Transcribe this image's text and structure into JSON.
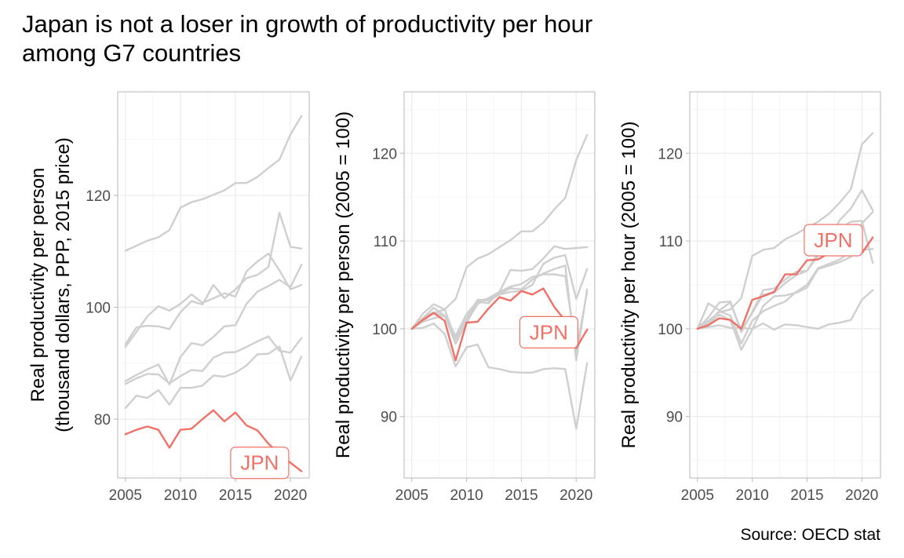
{
  "title_lines": [
    "Japan is not a loser in growth of productivity per hour",
    "among G7 countries"
  ],
  "caption": "Source: OECD stat",
  "colors": {
    "highlight": "#f07167",
    "others": "#cfcfcf"
  },
  "chart_data": [
    {
      "type": "line",
      "ylabel_lines": [
        "Real productivity per person",
        "(thousand dollars, PPP, 2015 price)"
      ],
      "xlim": [
        2004.3,
        2021.7
      ],
      "ylim": [
        69.5,
        138.5
      ],
      "xticks": [
        2005,
        2010,
        2015,
        2020
      ],
      "yticks": [
        80,
        100,
        120
      ],
      "x": [
        2005,
        2006,
        2007,
        2008,
        2009,
        2010,
        2011,
        2012,
        2013,
        2014,
        2015,
        2016,
        2017,
        2018,
        2019,
        2020,
        2021
      ],
      "highlight": {
        "label": "JPN",
        "label_at": [
          2017.2,
          72.2
        ],
        "values": [
          77.3,
          78.1,
          78.7,
          78.1,
          74.9,
          78.1,
          78.3,
          80.0,
          81.6,
          79.6,
          81.2,
          78.9,
          78.0,
          75.6,
          73.9,
          72.2,
          70.7
        ]
      },
      "series": [
        {
          "values": [
            110.1,
            111.0,
            111.9,
            112.5,
            113.8,
            117.8,
            118.8,
            119.3,
            120.1,
            120.9,
            122.2,
            122.2,
            123.3,
            124.9,
            126.4,
            130.9,
            134.2
          ]
        },
        {
          "values": [
            92.9,
            95.6,
            98.4,
            100.2,
            99.4,
            100.6,
            102.3,
            100.8,
            101.6,
            102.5,
            101.9,
            106.4,
            108.2,
            109.6,
            106.6,
            103.2,
            104.0
          ]
        },
        {
          "values": [
            93.4,
            96.4,
            96.7,
            96.6,
            96.1,
            99.1,
            101.1,
            100.5,
            104.0,
            101.6,
            103.2,
            105.2,
            105.8,
            107.2,
            116.9,
            110.8,
            110.5
          ]
        },
        {
          "values": [
            86.8,
            87.9,
            88.9,
            89.8,
            86.2,
            91.1,
            93.6,
            93.2,
            94.7,
            96.6,
            96.8,
            100.6,
            102.8,
            103.8,
            104.9,
            103.6,
            107.6
          ]
        },
        {
          "values": [
            86.3,
            87.3,
            88.1,
            88.0,
            86.4,
            87.7,
            88.8,
            88.6,
            91.0,
            91.9,
            92.0,
            92.9,
            93.9,
            94.8,
            92.2,
            91.9,
            94.5
          ]
        },
        {
          "values": [
            82.0,
            84.2,
            83.8,
            85.2,
            82.6,
            85.6,
            85.6,
            86.0,
            87.8,
            87.6,
            88.3,
            89.6,
            91.6,
            91.7,
            93.0,
            86.9,
            91.2
          ]
        }
      ]
    },
    {
      "type": "line",
      "ylabel_lines": [
        "Real productivity per person (2005 = 100)"
      ],
      "xlim": [
        2004.3,
        2021.7
      ],
      "ylim": [
        83.0,
        127.0
      ],
      "xticks": [
        2005,
        2010,
        2015,
        2020
      ],
      "yticks": [
        90,
        100,
        110,
        120
      ],
      "x": [
        2005,
        2006,
        2007,
        2008,
        2009,
        2010,
        2011,
        2012,
        2013,
        2014,
        2015,
        2016,
        2017,
        2018,
        2019,
        2020,
        2021
      ],
      "highlight": {
        "label": "JPN",
        "label_at": [
          2017.5,
          99.6
        ],
        "values": [
          100.0,
          101.0,
          101.8,
          100.9,
          96.4,
          100.7,
          100.8,
          102.3,
          103.6,
          103.2,
          104.3,
          103.9,
          104.6,
          102.5,
          100.9,
          97.8,
          99.9
        ]
      },
      "series": [
        {
          "values": [
            100.0,
            100.9,
            101.8,
            102.2,
            103.4,
            107.0,
            108.0,
            108.5,
            109.3,
            110.1,
            111.1,
            111.1,
            112.1,
            113.6,
            114.9,
            119.2,
            122.1
          ]
        },
        {
          "values": [
            100.0,
            101.7,
            102.8,
            102.2,
            98.8,
            101.2,
            103.3,
            103.2,
            103.9,
            104.2,
            104.3,
            105.0,
            107.4,
            108.1,
            108.4,
            103.4,
            106.8
          ]
        },
        {
          "values": [
            100.0,
            101.2,
            102.4,
            101.5,
            99.2,
            101.7,
            103.1,
            102.9,
            104.2,
            106.7,
            106.6,
            106.8,
            108.0,
            109.4,
            109.1,
            109.2,
            109.3
          ]
        },
        {
          "values": [
            100.0,
            100.8,
            101.2,
            101.5,
            98.3,
            100.8,
            102.8,
            103.5,
            104.2,
            104.8,
            105.1,
            105.9,
            106.2,
            106.2,
            106.0,
            97.5,
            104.2
          ]
        },
        {
          "values": [
            100.0,
            101.2,
            101.9,
            101.4,
            99.1,
            100.6,
            103.2,
            103.4,
            104.0,
            104.6,
            104.5,
            105.6,
            106.3,
            106.8,
            107.2,
            96.4,
            104.5
          ]
        },
        {
          "values": [
            100.0,
            100.1,
            100.6,
            99.4,
            95.7,
            97.9,
            98.2,
            95.6,
            95.4,
            95.1,
            95.0,
            95.0,
            95.4,
            95.5,
            95.4,
            88.6,
            96.1
          ]
        }
      ]
    },
    {
      "type": "line",
      "ylabel_lines": [
        "Real productivity per hour (2005 = 100)"
      ],
      "xlim": [
        2004.3,
        2021.7
      ],
      "ylim": [
        83.0,
        127.0
      ],
      "xticks": [
        2005,
        2010,
        2015,
        2020
      ],
      "yticks": [
        90,
        100,
        110,
        120
      ],
      "x": [
        2005,
        2006,
        2007,
        2008,
        2009,
        2010,
        2011,
        2012,
        2013,
        2014,
        2015,
        2016,
        2017,
        2018,
        2019,
        2020,
        2021
      ],
      "highlight": {
        "label": "JPN",
        "label_at": [
          2017.4,
          110.1
        ],
        "values": [
          100.0,
          100.4,
          101.2,
          101.0,
          100.0,
          103.3,
          103.7,
          104.2,
          106.2,
          106.2,
          107.8,
          107.9,
          108.6,
          109.0,
          109.2,
          108.6,
          110.4
        ]
      },
      "series": [
        {
          "values": [
            100.0,
            100.9,
            101.9,
            102.2,
            103.5,
            108.3,
            109.0,
            109.2,
            110.2,
            110.8,
            111.5,
            112.2,
            113.1,
            114.4,
            115.9,
            121.0,
            122.3
          ]
        },
        {
          "values": [
            100.0,
            102.9,
            102.1,
            103.0,
            99.8,
            101.8,
            103.9,
            104.1,
            105.2,
            106.1,
            106.6,
            108.6,
            110.2,
            112.4,
            113.7,
            115.8,
            113.5
          ]
        },
        {
          "values": [
            100.0,
            101.3,
            103.0,
            103.1,
            99.6,
            101.9,
            104.4,
            104.6,
            105.6,
            106.5,
            106.6,
            108.3,
            109.8,
            111.4,
            112.2,
            112.3,
            107.5
          ]
        },
        {
          "values": [
            100.0,
            100.5,
            101.6,
            101.0,
            97.6,
            99.9,
            102.6,
            103.7,
            103.8,
            104.1,
            104.7,
            106.8,
            107.2,
            107.6,
            108.2,
            112.0,
            113.3
          ]
        },
        {
          "values": [
            100.0,
            100.7,
            102.0,
            101.5,
            98.3,
            100.9,
            102.0,
            102.6,
            103.1,
            104.2,
            105.0,
            106.9,
            107.4,
            107.9,
            108.9,
            109.0,
            109.1
          ]
        },
        {
          "values": [
            100.0,
            100.2,
            100.4,
            100.1,
            100.1,
            100.0,
            100.6,
            99.9,
            100.5,
            100.4,
            100.2,
            100.0,
            100.5,
            100.7,
            101.0,
            103.3,
            104.4
          ]
        }
      ]
    }
  ]
}
